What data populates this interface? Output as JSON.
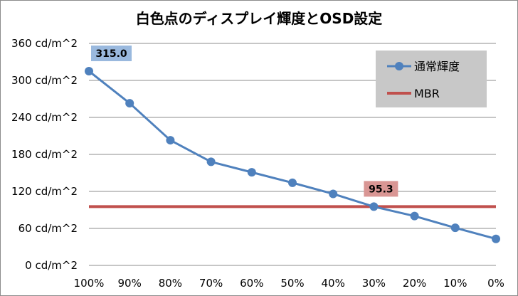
{
  "chart_data": {
    "type": "line",
    "title": "白色点のディスプレイ輝度とOSD設定",
    "xlabel": "",
    "ylabel": "",
    "categories": [
      "100%",
      "90%",
      "80%",
      "70%",
      "60%",
      "50%",
      "40%",
      "30%",
      "20%",
      "10%",
      "0%"
    ],
    "ylim": [
      0,
      360
    ],
    "y_tick_values": [
      0,
      60,
      120,
      180,
      240,
      300,
      360
    ],
    "y_tick_labels": [
      "0 cd/m^2",
      "60 cd/m^2",
      "120 cd/m^2",
      "180 cd/m^2",
      "240 cd/m^2",
      "300 cd/m^2",
      "360 cd/m^2"
    ],
    "grid": true,
    "legend": "top-right",
    "series": [
      {
        "name": "通常輝度",
        "values": [
          315.0,
          263,
          203,
          168,
          151,
          134,
          116,
          95.3,
          80,
          61,
          43
        ],
        "color": "#4f81bd",
        "marker": "circle"
      },
      {
        "name": "MBR",
        "values": [
          95.3,
          95.3,
          95.3,
          95.3,
          95.3,
          95.3,
          95.3,
          95.3,
          95.3,
          95.3,
          95.3
        ],
        "color": "#c0504d",
        "marker": "none"
      }
    ],
    "annotations": [
      {
        "series": 0,
        "index": 0,
        "text": "315.0",
        "bg": "#9ab9de"
      },
      {
        "series": 0,
        "index": 7,
        "text": "95.3",
        "bg": "#d99694"
      }
    ]
  }
}
